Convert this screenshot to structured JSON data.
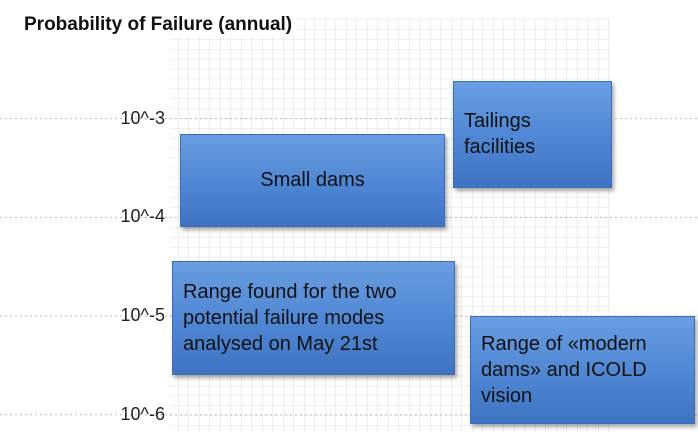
{
  "chart_data": {
    "type": "range",
    "title": "Probability of Failure (annual)",
    "log_scale": true,
    "grid": true,
    "ylim": [
      7e-07,
      0.01
    ],
    "yticks": [
      {
        "value": 0.001,
        "label": "10^-3"
      },
      {
        "value": 0.0001,
        "label": "10^-4"
      },
      {
        "value": 1e-05,
        "label": "10^-5"
      },
      {
        "value": 1e-06,
        "label": "10^-6"
      }
    ],
    "color": "#4f86d4",
    "series": [
      {
        "name": "Small dams",
        "low": 8e-05,
        "high": 0.0007
      },
      {
        "name": "Tailings facilities",
        "low": 0.0002,
        "high": 0.0024
      },
      {
        "name": "Range found for the two potential failure modes analysed on May 21st",
        "low": 2.5e-06,
        "high": 3.6e-05
      },
      {
        "name": "Range of «modern dams» and ICOLD vision",
        "low": 8e-07,
        "high": 1e-05
      }
    ]
  }
}
